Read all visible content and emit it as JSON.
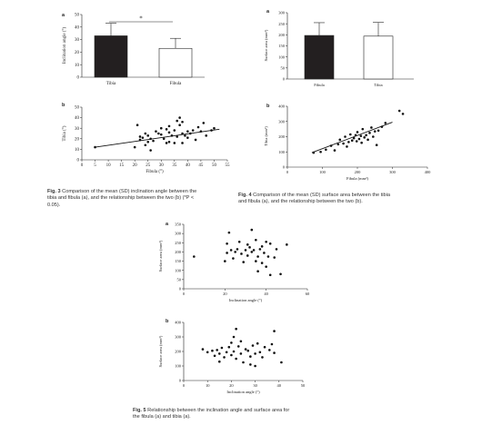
{
  "chart_data": [
    {
      "id": "fig3a",
      "panel": "a",
      "type": "bar",
      "categories": [
        "Tibia",
        "Fibula"
      ],
      "values": [
        33,
        23
      ],
      "errors": [
        10,
        8
      ],
      "ylabel": "Inclination angle (°)",
      "ylim": [
        0,
        50
      ],
      "yticks": [
        0,
        10,
        20,
        30,
        40,
        50
      ],
      "fills": [
        "#231f20",
        "#ffffff"
      ],
      "annotation": "*"
    },
    {
      "id": "fig3b",
      "panel": "b",
      "type": "scatter",
      "xlabel": "Fibula (°)",
      "ylabel": "Tibia (°)",
      "xlim": [
        0,
        55
      ],
      "ylim": [
        0,
        50
      ],
      "xticks": [
        0,
        5,
        10,
        15,
        20,
        25,
        30,
        35,
        40,
        45,
        50,
        55
      ],
      "yticks": [
        0,
        10,
        20,
        30,
        40,
        50
      ],
      "points": [
        [
          5,
          12
        ],
        [
          20,
          12
        ],
        [
          21,
          33
        ],
        [
          22,
          19
        ],
        [
          22,
          22
        ],
        [
          23,
          21
        ],
        [
          24,
          14
        ],
        [
          24,
          25
        ],
        [
          25,
          17
        ],
        [
          25,
          23
        ],
        [
          26,
          20
        ],
        [
          26,
          9
        ],
        [
          27,
          18
        ],
        [
          28,
          27
        ],
        [
          29,
          25
        ],
        [
          30,
          24
        ],
        [
          30,
          30
        ],
        [
          31,
          20
        ],
        [
          32,
          16
        ],
        [
          32,
          29
        ],
        [
          33,
          17
        ],
        [
          33,
          26
        ],
        [
          33,
          32
        ],
        [
          34,
          23
        ],
        [
          35,
          16
        ],
        [
          35,
          28
        ],
        [
          36,
          22
        ],
        [
          36,
          37
        ],
        [
          37,
          40
        ],
        [
          37,
          33
        ],
        [
          38,
          16
        ],
        [
          38,
          25
        ],
        [
          38,
          36
        ],
        [
          39,
          23
        ],
        [
          40,
          21
        ],
        [
          40,
          27
        ],
        [
          41,
          25
        ],
        [
          42,
          28
        ],
        [
          43,
          19
        ],
        [
          44,
          31
        ],
        [
          45,
          27
        ],
        [
          46,
          35
        ],
        [
          47,
          23
        ],
        [
          49,
          28
        ],
        [
          50,
          30
        ]
      ],
      "trendline": [
        [
          5,
          12
        ],
        [
          52,
          29
        ]
      ]
    },
    {
      "id": "fig4a",
      "panel": "a",
      "type": "bar",
      "categories": [
        "Fibula",
        "Tibia"
      ],
      "values": [
        197,
        194
      ],
      "errors": [
        58,
        62
      ],
      "ylabel": "Surface area (mm²)",
      "ylim": [
        0,
        300
      ],
      "yticks": [
        0,
        50,
        100,
        150,
        200,
        250,
        300
      ],
      "fills": [
        "#231f20",
        "#ffffff"
      ]
    },
    {
      "id": "fig4b",
      "panel": "b",
      "type": "scatter",
      "xlabel": "Fibula (mm²)",
      "ylabel": "Tibia (mm²)",
      "xlim": [
        0,
        400
      ],
      "ylim": [
        0,
        400
      ],
      "xticks": [
        0,
        100,
        200,
        300,
        400
      ],
      "yticks": [
        0,
        100,
        200,
        300,
        400
      ],
      "points": [
        [
          75,
          95
        ],
        [
          95,
          100
        ],
        [
          110,
          115
        ],
        [
          125,
          140
        ],
        [
          135,
          110
        ],
        [
          145,
          150
        ],
        [
          150,
          180
        ],
        [
          160,
          155
        ],
        [
          165,
          200
        ],
        [
          170,
          135
        ],
        [
          175,
          165
        ],
        [
          180,
          215
        ],
        [
          185,
          175
        ],
        [
          190,
          190
        ],
        [
          195,
          210
        ],
        [
          198,
          170
        ],
        [
          200,
          230
        ],
        [
          205,
          185
        ],
        [
          210,
          205
        ],
        [
          212,
          160
        ],
        [
          215,
          250
        ],
        [
          220,
          195
        ],
        [
          225,
          210
        ],
        [
          230,
          180
        ],
        [
          235,
          225
        ],
        [
          240,
          260
        ],
        [
          245,
          200
        ],
        [
          250,
          235
        ],
        [
          255,
          145
        ],
        [
          260,
          240
        ],
        [
          270,
          265
        ],
        [
          280,
          290
        ],
        [
          320,
          370
        ],
        [
          330,
          350
        ]
      ],
      "trendline": [
        [
          70,
          95
        ],
        [
          300,
          295
        ]
      ]
    },
    {
      "id": "fig5a",
      "panel": "a",
      "type": "scatter",
      "xlabel": "Inclination angle (°)",
      "ylabel": "Surface area (mm²)",
      "xlim": [
        0,
        60
      ],
      "ylim": [
        0,
        350
      ],
      "xticks": [
        0,
        20,
        40,
        60
      ],
      "yticks": [
        0,
        50,
        100,
        150,
        200,
        250,
        300,
        350
      ],
      "points": [
        [
          5,
          175
        ],
        [
          20,
          150
        ],
        [
          21,
          195
        ],
        [
          21,
          245
        ],
        [
          22,
          305
        ],
        [
          23,
          210
        ],
        [
          24,
          165
        ],
        [
          25,
          200
        ],
        [
          26,
          215
        ],
        [
          27,
          255
        ],
        [
          28,
          190
        ],
        [
          29,
          145
        ],
        [
          30,
          210
        ],
        [
          31,
          240
        ],
        [
          31,
          180
        ],
        [
          32,
          225
        ],
        [
          33,
          320
        ],
        [
          33,
          200
        ],
        [
          34,
          210
        ],
        [
          35,
          150
        ],
        [
          35,
          265
        ],
        [
          36,
          95
        ],
        [
          36,
          175
        ],
        [
          37,
          215
        ],
        [
          38,
          230
        ],
        [
          38,
          140
        ],
        [
          39,
          195
        ],
        [
          40,
          255
        ],
        [
          40,
          120
        ],
        [
          41,
          175
        ],
        [
          42,
          245
        ],
        [
          42,
          75
        ],
        [
          44,
          170
        ],
        [
          45,
          215
        ],
        [
          47,
          80
        ],
        [
          50,
          240
        ]
      ]
    },
    {
      "id": "fig5b",
      "panel": "b",
      "type": "scatter",
      "xlabel": "Inclination angle (°)",
      "ylabel": "Surface area (mm²)",
      "xlim": [
        0,
        50
      ],
      "ylim": [
        0,
        400
      ],
      "xticks": [
        0,
        10,
        20,
        30,
        40,
        50
      ],
      "yticks": [
        0,
        100,
        200,
        300,
        400
      ],
      "points": [
        [
          8,
          215
        ],
        [
          10,
          195
        ],
        [
          12,
          205
        ],
        [
          13,
          170
        ],
        [
          14,
          210
        ],
        [
          15,
          185
        ],
        [
          15,
          130
        ],
        [
          16,
          225
        ],
        [
          17,
          160
        ],
        [
          18,
          195
        ],
        [
          19,
          230
        ],
        [
          20,
          260
        ],
        [
          20,
          175
        ],
        [
          21,
          300
        ],
        [
          21,
          200
        ],
        [
          22,
          355
        ],
        [
          22,
          150
        ],
        [
          23,
          235
        ],
        [
          24,
          270
        ],
        [
          24,
          185
        ],
        [
          25,
          125
        ],
        [
          26,
          215
        ],
        [
          27,
          205
        ],
        [
          28,
          165
        ],
        [
          28,
          110
        ],
        [
          29,
          240
        ],
        [
          30,
          185
        ],
        [
          30,
          100
        ],
        [
          31,
          255
        ],
        [
          32,
          195
        ],
        [
          33,
          160
        ],
        [
          34,
          230
        ],
        [
          36,
          210
        ],
        [
          37,
          250
        ],
        [
          38,
          340
        ],
        [
          38,
          190
        ],
        [
          41,
          125
        ]
      ]
    }
  ],
  "captions": {
    "fig3": {
      "label": "Fig. 3",
      "lines": [
        "Comparison of the mean (SD) inclination angle between the",
        "tibia and fibula (a), and the relationship between the two (b) (*P <",
        "0.05)."
      ]
    },
    "fig4": {
      "label": "Fig. 4",
      "lines": [
        "Comparison of the mean (SD) surface area between the tibia",
        "and fibula (a), and the relationship between the two (b)."
      ]
    },
    "fig5": {
      "label": "Fig. 5",
      "lines": [
        "Relationship between the inclination angle and surface area for",
        "the fibula (a) and tibia (a)."
      ]
    }
  }
}
